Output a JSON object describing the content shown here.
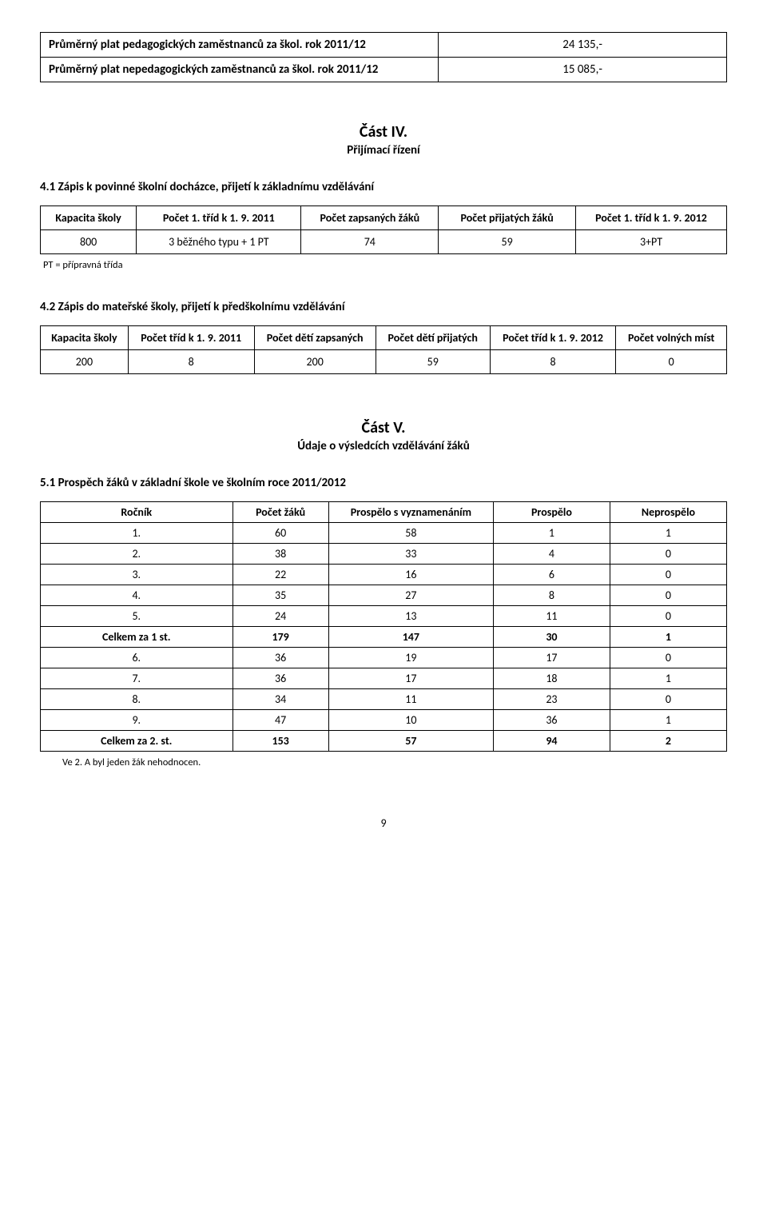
{
  "salary": {
    "rows": [
      {
        "label": "Průměrný plat pedagogických zaměstnanců za škol. rok  2011/12",
        "value": "24 135,-"
      },
      {
        "label": "Průměrný plat nepedagogických zaměstnanců za škol. rok  2011/12",
        "value": "15 085,-"
      }
    ]
  },
  "section4": {
    "title": "Část IV.",
    "subtitle": "Přijímací řízení",
    "h41": "4.1 Zápis k povinné školní docházce, přijetí k základnímu vzdělávání",
    "t41": {
      "headers": [
        "Kapacita školy",
        "Počet 1. tříd k 1. 9. 2011",
        "Počet zapsaných žáků",
        "Počet přijatých žáků",
        "Počet 1. tříd k 1. 9. 2012"
      ],
      "row": [
        "800",
        "3 běžného typu + 1 PT",
        "74",
        "59",
        "3+PT"
      ]
    },
    "foot41": "PT = přípravná třída",
    "h42": "4.2 Zápis do mateřské školy, přijetí k předškolnímu vzdělávání",
    "t42": {
      "headers": [
        "Kapacita školy",
        "Počet tříd k 1. 9. 2011",
        "Počet dětí zapsaných",
        "Počet dětí přijatých",
        "Počet tříd k 1. 9. 2012",
        "Počet volných míst"
      ],
      "row": [
        "200",
        "8",
        "200",
        "59",
        "8",
        "0"
      ]
    }
  },
  "section5": {
    "title": "Část V.",
    "subtitle": "Údaje o výsledcích vzdělávání žáků",
    "h51": "5.1 Prospěch žáků v základní škole ve školním roce 2011/2012",
    "t51": {
      "headers": [
        "Ročník",
        "Počet žáků",
        "Prospělo s vyznamenáním",
        "Prospělo",
        "Neprospělo"
      ],
      "rows": [
        {
          "cells": [
            "1.",
            "60",
            "58",
            "1",
            "1"
          ],
          "bold": false
        },
        {
          "cells": [
            "2.",
            "38",
            "33",
            "4",
            "0"
          ],
          "bold": false
        },
        {
          "cells": [
            "3.",
            "22",
            "16",
            "6",
            "0"
          ],
          "bold": false
        },
        {
          "cells": [
            "4.",
            "35",
            "27",
            "8",
            "0"
          ],
          "bold": false
        },
        {
          "cells": [
            "5.",
            "24",
            "13",
            "11",
            "0"
          ],
          "bold": false
        },
        {
          "cells": [
            "Celkem za 1 st.",
            "179",
            "147",
            "30",
            "1"
          ],
          "bold": true
        },
        {
          "cells": [
            "6.",
            "36",
            "19",
            "17",
            "0"
          ],
          "bold": false
        },
        {
          "cells": [
            "7.",
            "36",
            "17",
            "18",
            "1"
          ],
          "bold": false
        },
        {
          "cells": [
            "8.",
            "34",
            "11",
            "23",
            "0"
          ],
          "bold": false
        },
        {
          "cells": [
            "9.",
            "47",
            "10",
            "36",
            "1"
          ],
          "bold": false
        },
        {
          "cells": [
            "Celkem za 2. st.",
            "153",
            "57",
            "94",
            "2"
          ],
          "bold": true
        }
      ]
    },
    "foot51": "Ve 2. A byl jeden žák nehodnocen."
  },
  "pageNumber": "9",
  "colors": {
    "text": "#000000",
    "bg": "#ffffff",
    "border": "#000000"
  }
}
